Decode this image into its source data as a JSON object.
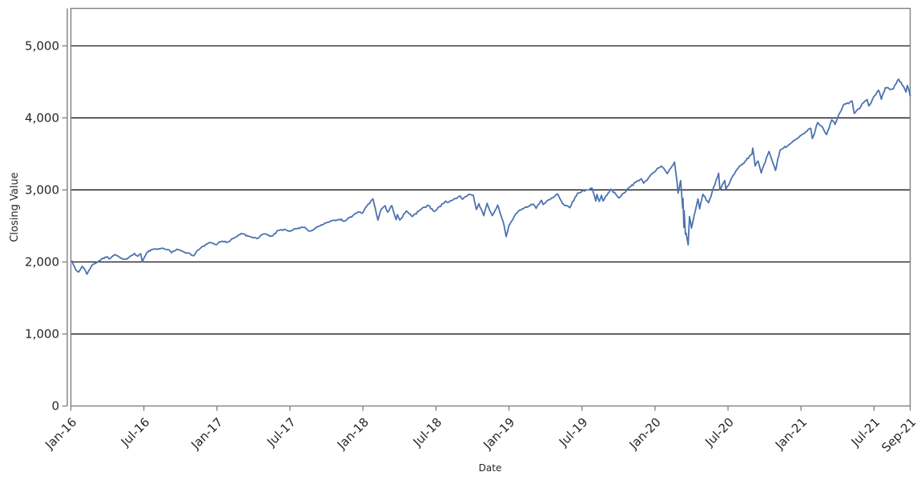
{
  "chart_data": {
    "type": "line",
    "title": "",
    "xlabel": "Date",
    "ylabel": "Closing Value",
    "x_unit": "months since 2016-01-01",
    "xlim": [
      0,
      68.97
    ],
    "ylim": [
      0,
      5520
    ],
    "grid": {
      "horizontal": true,
      "vertical": false
    },
    "legend": "none",
    "colors": {
      "line": "#4C72B0",
      "grid": "#000000",
      "frame": "#7f7f7f",
      "text": "#262626"
    },
    "line_width": 1.8,
    "x_ticks": [
      {
        "m": 0,
        "label": "Jan-16"
      },
      {
        "m": 6,
        "label": "Jul-16"
      },
      {
        "m": 12,
        "label": "Jan-17"
      },
      {
        "m": 18,
        "label": "Jul-17"
      },
      {
        "m": 24,
        "label": "Jan-18"
      },
      {
        "m": 30,
        "label": "Jul-18"
      },
      {
        "m": 36,
        "label": "Jan-19"
      },
      {
        "m": 42,
        "label": "Jul-19"
      },
      {
        "m": 48,
        "label": "Jan-20"
      },
      {
        "m": 54,
        "label": "Jul-20"
      },
      {
        "m": 60,
        "label": "Jan-21"
      },
      {
        "m": 66,
        "label": "Jul-21"
      },
      {
        "m": 68.97,
        "label": "Sep-21"
      }
    ],
    "y_ticks": [
      {
        "v": 0,
        "label": "0"
      },
      {
        "v": 1000,
        "label": "1,000"
      },
      {
        "v": 2000,
        "label": "2,000"
      },
      {
        "v": 3000,
        "label": "3,000"
      },
      {
        "v": 4000,
        "label": "4,000"
      },
      {
        "v": 5000,
        "label": "5,000"
      }
    ],
    "points": [
      [
        0.1,
        2013
      ],
      [
        0.4,
        1890
      ],
      [
        0.63,
        1859
      ],
      [
        0.93,
        1940
      ],
      [
        1.07,
        1913
      ],
      [
        1.33,
        1829
      ],
      [
        1.7,
        1946
      ],
      [
        2.0,
        1978
      ],
      [
        2.53,
        2041
      ],
      [
        3.0,
        2073
      ],
      [
        3.2,
        2042
      ],
      [
        3.63,
        2102
      ],
      [
        4.13,
        2050
      ],
      [
        4.6,
        2040
      ],
      [
        5.23,
        2119
      ],
      [
        5.5,
        2078
      ],
      [
        5.73,
        2113
      ],
      [
        5.87,
        2001
      ],
      [
        6.23,
        2130
      ],
      [
        6.7,
        2175
      ],
      [
        7.47,
        2190
      ],
      [
        8.0,
        2171
      ],
      [
        8.27,
        2128
      ],
      [
        8.7,
        2177
      ],
      [
        9.1,
        2150
      ],
      [
        9.53,
        2127
      ],
      [
        10.1,
        2085
      ],
      [
        10.43,
        2164
      ],
      [
        10.8,
        2213
      ],
      [
        11.4,
        2271
      ],
      [
        11.97,
        2239
      ],
      [
        12.17,
        2277
      ],
      [
        12.97,
        2279
      ],
      [
        13.4,
        2328
      ],
      [
        14.0,
        2396
      ],
      [
        14.87,
        2341
      ],
      [
        15.4,
        2329
      ],
      [
        15.8,
        2388
      ],
      [
        16.53,
        2357
      ],
      [
        17.03,
        2439
      ],
      [
        17.6,
        2453
      ],
      [
        18.07,
        2429
      ],
      [
        18.43,
        2459
      ],
      [
        19.2,
        2481
      ],
      [
        19.53,
        2430
      ],
      [
        19.67,
        2428
      ],
      [
        20.37,
        2496
      ],
      [
        21.13,
        2552
      ],
      [
        21.87,
        2581
      ],
      [
        22.23,
        2594
      ],
      [
        22.47,
        2565
      ],
      [
        23.57,
        2690
      ],
      [
        23.93,
        2674
      ],
      [
        24.37,
        2786
      ],
      [
        24.83,
        2873
      ],
      [
        25.13,
        2649
      ],
      [
        25.23,
        2581
      ],
      [
        25.5,
        2732
      ],
      [
        25.83,
        2780
      ],
      [
        26.03,
        2691
      ],
      [
        26.37,
        2783
      ],
      [
        26.73,
        2588
      ],
      [
        26.83,
        2658
      ],
      [
        27.03,
        2582
      ],
      [
        27.57,
        2708
      ],
      [
        28.07,
        2630
      ],
      [
        28.7,
        2724
      ],
      [
        29.37,
        2787
      ],
      [
        29.87,
        2700
      ],
      [
        30.8,
        2846
      ],
      [
        31.03,
        2827
      ],
      [
        31.93,
        2914
      ],
      [
        32.2,
        2872
      ],
      [
        32.63,
        2931
      ],
      [
        33.07,
        2925
      ],
      [
        33.33,
        2728
      ],
      [
        33.53,
        2809
      ],
      [
        33.93,
        2641
      ],
      [
        34.2,
        2814
      ],
      [
        34.63,
        2642
      ],
      [
        35.07,
        2790
      ],
      [
        35.43,
        2600
      ],
      [
        35.6,
        2507
      ],
      [
        35.77,
        2351
      ],
      [
        36.0,
        2507
      ],
      [
        36.57,
        2671
      ],
      [
        37.13,
        2738
      ],
      [
        38.0,
        2804
      ],
      [
        38.23,
        2743
      ],
      [
        38.67,
        2855
      ],
      [
        38.8,
        2798
      ],
      [
        39.97,
        2946
      ],
      [
        40.4,
        2812
      ],
      [
        41.0,
        2752
      ],
      [
        41.63,
        2954
      ],
      [
        42.83,
        3026
      ],
      [
        43.13,
        2845
      ],
      [
        43.23,
        2938
      ],
      [
        43.43,
        2841
      ],
      [
        43.6,
        2924
      ],
      [
        43.73,
        2847
      ],
      [
        44.37,
        3010
      ],
      [
        45.03,
        2888
      ],
      [
        45.9,
        3039
      ],
      [
        46.87,
        3154
      ],
      [
        47.07,
        3093
      ],
      [
        47.87,
        3240
      ],
      [
        48.53,
        3330
      ],
      [
        49.0,
        3226
      ],
      [
        49.6,
        3386
      ],
      [
        49.8,
        3128
      ],
      [
        49.9,
        2954
      ],
      [
        50.1,
        3130
      ],
      [
        50.27,
        2746
      ],
      [
        50.3,
        2882
      ],
      [
        50.37,
        2481
      ],
      [
        50.4,
        2711
      ],
      [
        50.5,
        2386
      ],
      [
        50.57,
        2398
      ],
      [
        50.73,
        2237
      ],
      [
        50.83,
        2630
      ],
      [
        51.0,
        2470
      ],
      [
        51.53,
        2875
      ],
      [
        51.67,
        2737
      ],
      [
        51.93,
        2940
      ],
      [
        52.4,
        2820
      ],
      [
        53.23,
        3232
      ],
      [
        53.33,
        3002
      ],
      [
        53.73,
        3131
      ],
      [
        53.83,
        3009
      ],
      [
        54.7,
        3276
      ],
      [
        55.97,
        3500
      ],
      [
        56.03,
        3581
      ],
      [
        56.23,
        3332
      ],
      [
        56.47,
        3401
      ],
      [
        56.73,
        3237
      ],
      [
        57.37,
        3534
      ],
      [
        57.9,
        3271
      ],
      [
        58.27,
        3550
      ],
      [
        58.97,
        3622
      ],
      [
        60.0,
        3756
      ],
      [
        60.8,
        3855
      ],
      [
        60.93,
        3714
      ],
      [
        61.37,
        3935
      ],
      [
        61.73,
        3881
      ],
      [
        62.1,
        3768
      ],
      [
        62.53,
        3974
      ],
      [
        62.8,
        3910
      ],
      [
        63.5,
        4185
      ],
      [
        64.2,
        4233
      ],
      [
        64.37,
        4063
      ],
      [
        65.43,
        4255
      ],
      [
        65.57,
        4166
      ],
      [
        66.37,
        4385
      ],
      [
        66.6,
        4258
      ],
      [
        66.93,
        4419
      ],
      [
        67.6,
        4406
      ],
      [
        68.03,
        4537
      ],
      [
        68.3,
        4459
      ],
      [
        68.63,
        4358
      ],
      [
        68.73,
        4449
      ],
      [
        68.97,
        4307
      ]
    ],
    "noise": {
      "seed": 42,
      "amplitude": 0.005,
      "step_months": 0.1
    }
  }
}
